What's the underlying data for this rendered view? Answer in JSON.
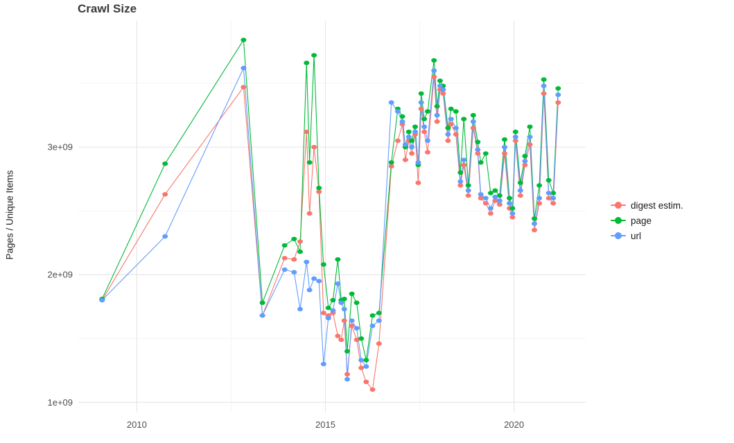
{
  "chart": {
    "title": "Crawl Size",
    "ylabel": "Pages / Unique Items"
  },
  "legend": {
    "items": [
      {
        "label": "digest estim.",
        "color": "#F8766D"
      },
      {
        "label": "page",
        "color": "#00BA38"
      },
      {
        "label": "url",
        "color": "#619CFF"
      }
    ]
  },
  "chart_data": {
    "type": "line",
    "title": "Crawl Size",
    "xlabel": "",
    "ylabel": "Pages / Unique Items",
    "unit": "1e9 pages / unique items",
    "grid": true,
    "legend_position": "right",
    "xlim": [
      2008.45,
      2021.9
    ],
    "ylim": [
      0.92,
      3.99
    ],
    "xticks": [
      2010,
      2015,
      2020
    ],
    "xtick_labels": [
      "2010",
      "2015",
      "2020"
    ],
    "x_minor": [
      2012.5,
      2017.5
    ],
    "yticks": [
      1,
      2,
      3
    ],
    "ytick_labels": [
      "1e+09",
      "2e+09",
      "3e+09"
    ],
    "y_minor": [
      1.5,
      2.5,
      3.5
    ],
    "x": [
      2009.08,
      2010.75,
      2012.83,
      2013.33,
      2013.92,
      2014.17,
      2014.33,
      2014.5,
      2014.58,
      2014.7,
      2014.83,
      2014.95,
      2015.08,
      2015.2,
      2015.33,
      2015.42,
      2015.5,
      2015.58,
      2015.7,
      2015.83,
      2015.95,
      2016.08,
      2016.25,
      2016.42,
      2016.75,
      2016.92,
      2017.04,
      2017.12,
      2017.21,
      2017.29,
      2017.38,
      2017.46,
      2017.54,
      2017.62,
      2017.71,
      2017.88,
      2017.96,
      2018.04,
      2018.12,
      2018.25,
      2018.33,
      2018.46,
      2018.58,
      2018.67,
      2018.79,
      2018.92,
      2019.04,
      2019.12,
      2019.25,
      2019.38,
      2019.5,
      2019.62,
      2019.75,
      2019.88,
      2019.96,
      2020.04,
      2020.17,
      2020.29,
      2020.42,
      2020.54,
      2020.67,
      2020.79,
      2020.92,
      2021.04,
      2021.17
    ],
    "series": [
      {
        "name": "digest estim.",
        "color": "#F8766D",
        "values": [
          1.8,
          2.63,
          3.47,
          1.68,
          2.13,
          2.12,
          2.26,
          3.12,
          2.48,
          3.0,
          2.65,
          1.7,
          1.68,
          1.7,
          1.52,
          1.49,
          1.64,
          1.22,
          1.6,
          1.49,
          1.27,
          1.16,
          1.1,
          1.46,
          2.85,
          3.05,
          3.18,
          2.9,
          3.05,
          2.95,
          3.1,
          2.72,
          3.3,
          3.12,
          2.96,
          3.55,
          3.2,
          3.45,
          3.42,
          3.05,
          3.18,
          3.1,
          2.7,
          2.86,
          2.62,
          3.15,
          2.95,
          2.6,
          2.56,
          2.48,
          2.58,
          2.55,
          2.95,
          2.52,
          2.45,
          3.05,
          2.62,
          2.86,
          3.02,
          2.35,
          2.56,
          3.42,
          2.6,
          2.56,
          3.35
        ]
      },
      {
        "name": "page",
        "color": "#00BA38",
        "values": [
          1.81,
          2.87,
          3.84,
          1.78,
          2.23,
          2.28,
          2.18,
          3.66,
          2.88,
          3.72,
          2.68,
          2.08,
          1.74,
          1.8,
          2.12,
          1.8,
          1.81,
          1.4,
          1.85,
          1.78,
          1.5,
          1.33,
          1.68,
          1.7,
          2.88,
          3.3,
          3.24,
          3.0,
          3.12,
          3.05,
          3.16,
          2.86,
          3.42,
          3.22,
          3.28,
          3.68,
          3.32,
          3.52,
          3.48,
          3.15,
          3.3,
          3.28,
          2.8,
          3.22,
          2.7,
          3.25,
          3.04,
          2.88,
          2.95,
          2.64,
          2.66,
          2.62,
          3.06,
          2.6,
          2.52,
          3.12,
          2.72,
          2.93,
          3.16,
          2.44,
          2.7,
          3.53,
          2.74,
          2.64,
          3.46
        ]
      },
      {
        "name": "url",
        "color": "#619CFF",
        "values": [
          1.8,
          2.3,
          3.62,
          1.68,
          2.04,
          2.02,
          1.73,
          2.1,
          1.88,
          1.97,
          1.95,
          1.3,
          1.66,
          1.72,
          1.93,
          1.78,
          1.73,
          1.18,
          1.64,
          1.58,
          1.33,
          1.28,
          1.6,
          1.64,
          3.35,
          3.28,
          3.2,
          3.02,
          3.08,
          3.0,
          3.12,
          2.88,
          3.35,
          3.16,
          3.05,
          3.6,
          3.25,
          3.48,
          3.45,
          3.1,
          3.22,
          3.15,
          2.73,
          2.9,
          2.66,
          3.2,
          2.98,
          2.63,
          2.6,
          2.52,
          2.61,
          2.58,
          3.0,
          2.56,
          2.48,
          3.08,
          2.66,
          2.89,
          3.08,
          2.4,
          2.6,
          3.48,
          2.64,
          2.6,
          3.41
        ]
      }
    ]
  }
}
